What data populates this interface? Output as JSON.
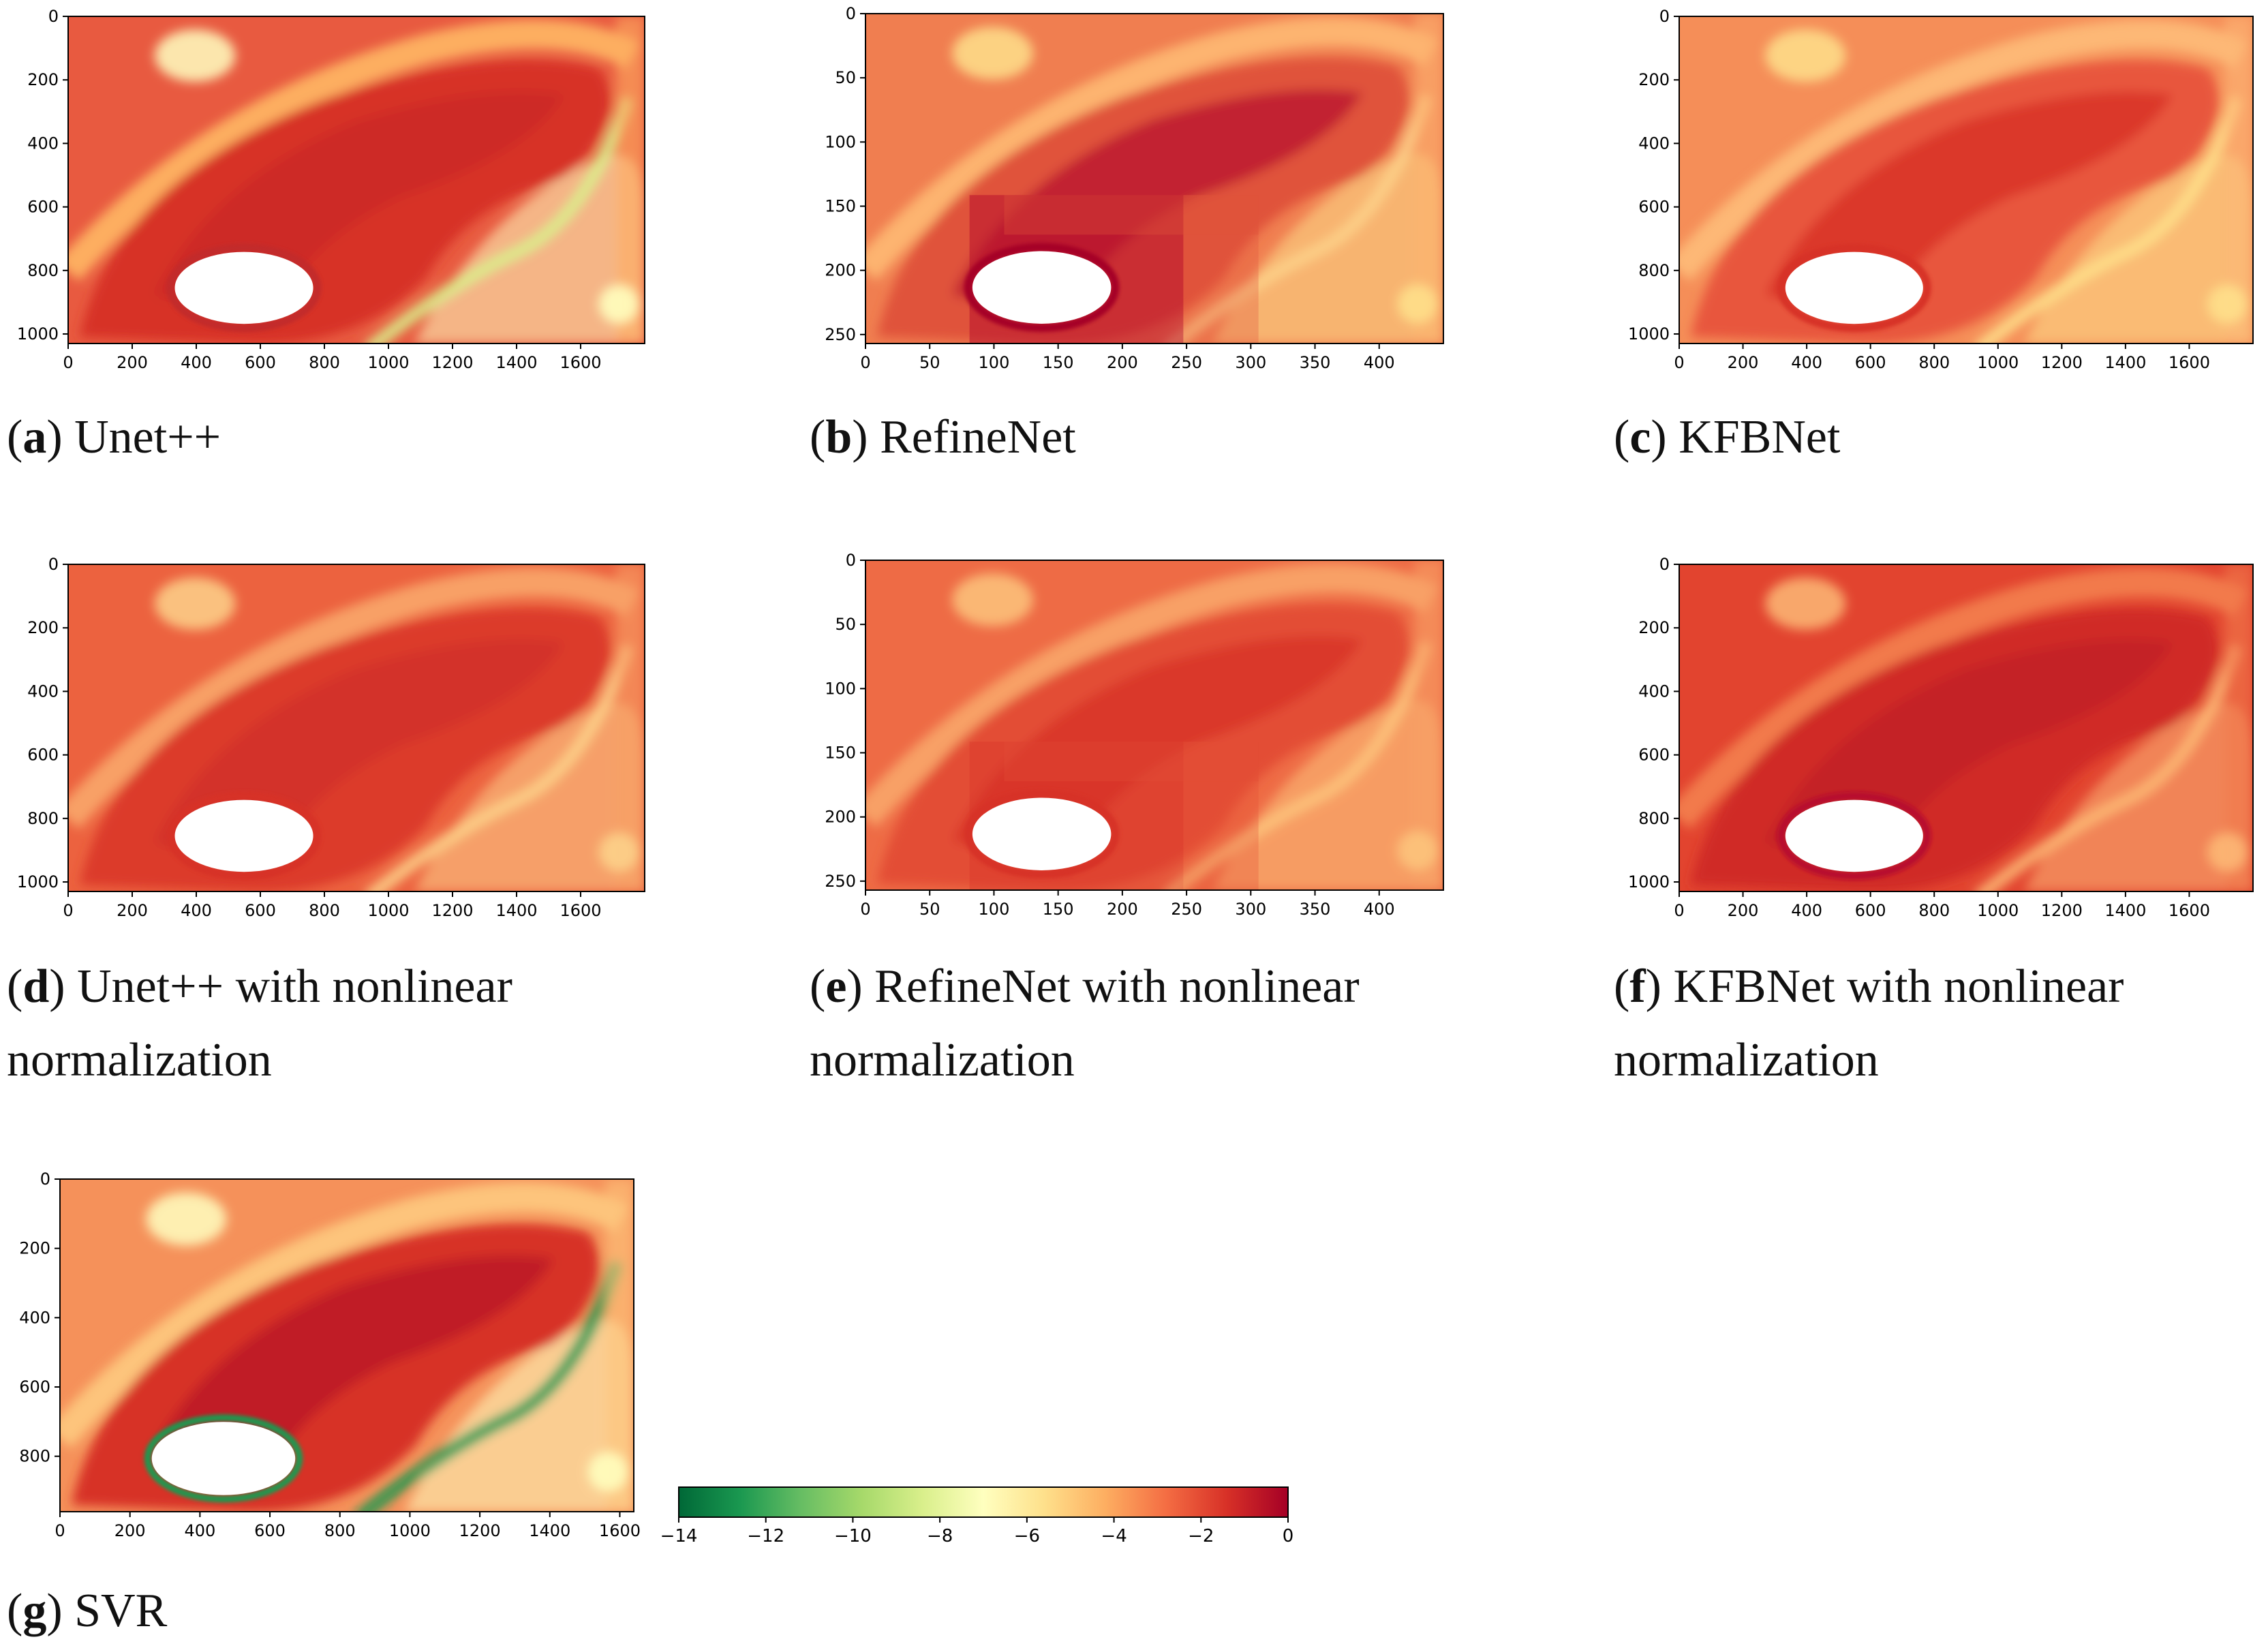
{
  "chart_data": [
    {
      "type": "heatmap",
      "label": "a",
      "caption": "Unet++",
      "caption_line2": "",
      "variant": "unet",
      "x_range": [
        0,
        1800
      ],
      "y_range": [
        1030,
        0
      ],
      "xticks": [
        0,
        200,
        400,
        600,
        800,
        1000,
        1200,
        1400,
        1600
      ],
      "yticks": [
        0,
        200,
        400,
        600,
        800,
        1000
      ]
    },
    {
      "type": "heatmap",
      "label": "b",
      "caption": "RefineNet",
      "caption_line2": "",
      "variant": "refine",
      "x_range": [
        0,
        450
      ],
      "y_range": [
        257,
        0
      ],
      "xticks": [
        0,
        50,
        100,
        150,
        200,
        250,
        300,
        350,
        400
      ],
      "yticks": [
        0,
        50,
        100,
        150,
        200,
        250
      ]
    },
    {
      "type": "heatmap",
      "label": "c",
      "caption": "KFBNet",
      "caption_line2": "",
      "variant": "kfb",
      "x_range": [
        0,
        1800
      ],
      "y_range": [
        1030,
        0
      ],
      "xticks": [
        0,
        200,
        400,
        600,
        800,
        1000,
        1200,
        1400,
        1600
      ],
      "yticks": [
        0,
        200,
        400,
        600,
        800,
        1000
      ]
    },
    {
      "type": "heatmap",
      "label": "d",
      "caption": "Unet++ with nonlinear",
      "caption_line2": "normalization",
      "variant": "unet-n",
      "x_range": [
        0,
        1800
      ],
      "y_range": [
        1030,
        0
      ],
      "xticks": [
        0,
        200,
        400,
        600,
        800,
        1000,
        1200,
        1400,
        1600
      ],
      "yticks": [
        0,
        200,
        400,
        600,
        800,
        1000
      ]
    },
    {
      "type": "heatmap",
      "label": "e",
      "caption": "RefineNet with nonlinear",
      "caption_line2": "normalization",
      "variant": "refine-n",
      "x_range": [
        0,
        450
      ],
      "y_range": [
        257,
        0
      ],
      "xticks": [
        0,
        50,
        100,
        150,
        200,
        250,
        300,
        350,
        400
      ],
      "yticks": [
        0,
        50,
        100,
        150,
        200,
        250
      ]
    },
    {
      "type": "heatmap",
      "label": "f",
      "caption": "KFBNet with nonlinear",
      "caption_line2": "normalization",
      "variant": "kfb-n",
      "x_range": [
        0,
        1800
      ],
      "y_range": [
        1030,
        0
      ],
      "xticks": [
        0,
        200,
        400,
        600,
        800,
        1000,
        1200,
        1400,
        1600
      ],
      "yticks": [
        0,
        200,
        400,
        600,
        800,
        1000
      ]
    },
    {
      "type": "heatmap",
      "label": "g",
      "caption": "SVR",
      "caption_line2": "",
      "variant": "svr",
      "x_range": [
        0,
        1640
      ],
      "y_range": [
        960,
        0
      ],
      "xticks": [
        0,
        200,
        400,
        600,
        800,
        1000,
        1200,
        1400,
        1600
      ],
      "yticks": [
        0,
        200,
        400,
        600,
        800
      ]
    }
  ],
  "colorbar": {
    "colormap": "RdYlGn",
    "range": [
      -14,
      0
    ],
    "ticks": [
      -14,
      -12,
      -10,
      -8,
      -6,
      -4,
      -2,
      0
    ],
    "tick_labels": [
      "−14",
      "−12",
      "−10",
      "−8",
      "−6",
      "−4",
      "−2",
      "0"
    ]
  },
  "colors": {
    "deep_red": "#a50026",
    "red": "#d73027",
    "orange_red": "#e65a3c",
    "orange": "#f46d43",
    "light_orange": "#fdae61",
    "pale_yellow": "#fee08b",
    "cream": "#ffffbf",
    "light_green": "#d9ef8b",
    "mid_green": "#66bd63",
    "dark_green": "#006837"
  }
}
